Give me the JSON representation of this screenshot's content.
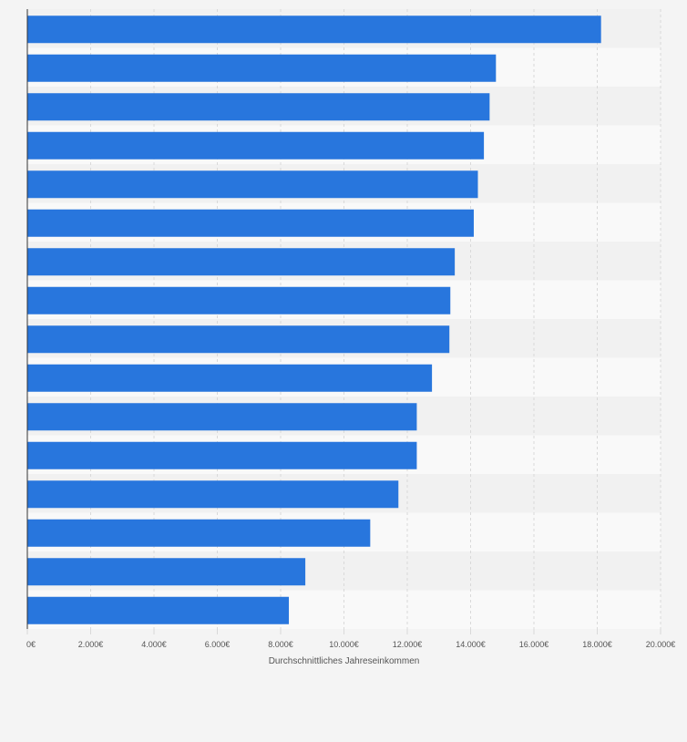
{
  "chart_data": {
    "type": "bar",
    "orientation": "horizontal",
    "title": "",
    "xlabel": "Durchschnittliches Jahreseinkommen",
    "ylabel": "",
    "xlim": [
      0,
      20000
    ],
    "x_ticks": [
      0,
      2000,
      4000,
      6000,
      8000,
      10000,
      12000,
      14000,
      16000,
      18000,
      20000
    ],
    "x_tick_labels": [
      "0€",
      "2.000€",
      "4.000€",
      "6.000€",
      "8.000€",
      "10.000€",
      "12.000€",
      "14.000€",
      "16.000€",
      "18.000€",
      "20.000€"
    ],
    "categories": [
      "",
      "",
      "",
      "",
      "",
      "",
      "",
      "",
      "",
      "",
      "",
      "",
      "",
      "",
      "",
      ""
    ],
    "values": [
      18120,
      14800,
      14600,
      14420,
      14230,
      14100,
      13500,
      13360,
      13330,
      12780,
      12300,
      12300,
      11720,
      10830,
      8780,
      8260
    ],
    "grid": true,
    "colors": {
      "bar": "#2876dd",
      "background": "#f4f4f4",
      "band_light": "#f9f9f9",
      "band_dark": "#f1f1f1",
      "grid": "#d9d9d9",
      "axis": "#333333",
      "text": "#555555"
    }
  }
}
